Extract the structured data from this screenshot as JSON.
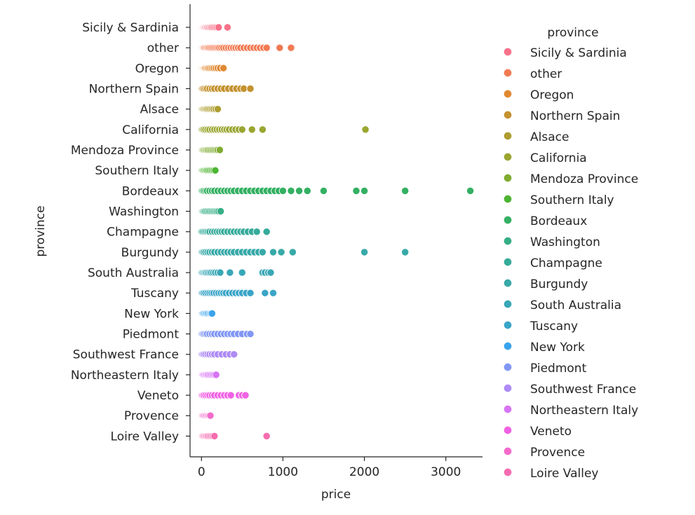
{
  "chart_data": {
    "type": "scatter",
    "xlabel": "price",
    "ylabel": "province",
    "xlim": [
      -140,
      3450
    ],
    "xticks": [
      0,
      1000,
      2000,
      3000
    ],
    "grid": false,
    "legend": {
      "title": "province",
      "placement": "right"
    },
    "series": [
      {
        "name": "Sicily & Sardinia",
        "color": "#f77189",
        "values": [
          4,
          12,
          20,
          28,
          38,
          48,
          60,
          72,
          85,
          100,
          115,
          130,
          150,
          170,
          190,
          210,
          320
        ]
      },
      {
        "name": "other",
        "color": "#f27a52",
        "values": [
          4,
          12,
          20,
          30,
          40,
          55,
          70,
          85,
          100,
          120,
          140,
          160,
          180,
          200,
          220,
          245,
          270,
          300,
          330,
          360,
          390,
          420,
          450,
          480,
          520,
          560,
          600,
          640,
          680,
          720,
          760,
          800,
          960,
          1100
        ]
      },
      {
        "name": "Oregon",
        "color": "#e08932",
        "values": [
          4,
          10,
          18,
          26,
          35,
          45,
          60,
          75,
          90,
          110,
          130,
          150,
          175,
          200,
          230,
          270
        ]
      },
      {
        "name": "Northern Spain",
        "color": "#c4922f",
        "values": [
          5,
          15,
          30,
          50,
          70,
          100,
          130,
          160,
          200,
          240,
          280,
          330,
          380,
          430,
          480,
          520,
          600
        ]
      },
      {
        "name": "Alsace",
        "color": "#ae9d31",
        "values": [
          5,
          15,
          25,
          40,
          55,
          70,
          90,
          110,
          130,
          150,
          175,
          200
        ]
      },
      {
        "name": "California",
        "color": "#9aa630",
        "values": [
          4,
          15,
          30,
          50,
          75,
          100,
          130,
          160,
          190,
          220,
          250,
          280,
          310,
          340,
          380,
          420,
          460,
          500,
          620,
          750,
          2013
        ]
      },
      {
        "name": "Mendoza Province",
        "color": "#7fab31",
        "values": [
          4,
          12,
          22,
          35,
          50,
          65,
          80,
          100,
          120,
          140,
          160,
          180,
          200,
          225
        ]
      },
      {
        "name": "Southern Italy",
        "color": "#4db432",
        "values": [
          5,
          15,
          25,
          40,
          55,
          70,
          90,
          110,
          130,
          150,
          170
        ]
      },
      {
        "name": "Bordeaux",
        "color": "#33b062",
        "values": [
          4,
          15,
          30,
          50,
          70,
          100,
          130,
          160,
          200,
          240,
          280,
          320,
          360,
          400,
          450,
          500,
          550,
          600,
          650,
          700,
          750,
          800,
          850,
          900,
          950,
          1000,
          1100,
          1200,
          1300,
          1500,
          1900,
          2000,
          2500,
          3300
        ]
      },
      {
        "name": "Washington",
        "color": "#35ae85",
        "values": [
          4,
          12,
          22,
          35,
          50,
          70,
          90,
          110,
          130,
          150,
          170,
          190,
          210,
          235
        ]
      },
      {
        "name": "Champagne",
        "color": "#36ab9a",
        "values": [
          5,
          20,
          40,
          60,
          80,
          100,
          130,
          160,
          190,
          220,
          250,
          280,
          320,
          360,
          400,
          440,
          480,
          520,
          570,
          620,
          680,
          800
        ]
      },
      {
        "name": "Burgundy",
        "color": "#38a9a8",
        "values": [
          4,
          15,
          30,
          50,
          75,
          100,
          130,
          160,
          200,
          240,
          280,
          320,
          360,
          400,
          450,
          500,
          550,
          600,
          650,
          700,
          750,
          880,
          980,
          1120,
          2000,
          2500
        ]
      },
      {
        "name": "South Australia",
        "color": "#39a7b6",
        "values": [
          4,
          15,
          30,
          45,
          60,
          80,
          100,
          120,
          145,
          170,
          200,
          230,
          350,
          500,
          750,
          780,
          820,
          850
        ]
      },
      {
        "name": "Tuscany",
        "color": "#3aa5c7",
        "values": [
          4,
          15,
          30,
          50,
          75,
          100,
          125,
          150,
          180,
          210,
          240,
          270,
          300,
          340,
          380,
          420,
          460,
          500,
          550,
          600,
          780,
          880
        ]
      },
      {
        "name": "New York",
        "color": "#3ba3ec",
        "values": [
          4,
          12,
          22,
          35,
          50,
          65,
          80,
          100,
          115,
          130
        ]
      },
      {
        "name": "Piedmont",
        "color": "#8197f4",
        "values": [
          4,
          15,
          30,
          50,
          70,
          100,
          130,
          160,
          200,
          240,
          280,
          320,
          360,
          400,
          450,
          500,
          560,
          600
        ]
      },
      {
        "name": "Southwest France",
        "color": "#ae8af4",
        "values": [
          4,
          15,
          30,
          50,
          75,
          100,
          130,
          160,
          200,
          250,
          300,
          350,
          400
        ]
      },
      {
        "name": "Northeastern Italy",
        "color": "#d774f4",
        "values": [
          4,
          12,
          22,
          35,
          50,
          65,
          80,
          100,
          120,
          140,
          160,
          180
        ]
      },
      {
        "name": "Veneto",
        "color": "#f062e3",
        "values": [
          4,
          15,
          30,
          50,
          75,
          100,
          130,
          160,
          200,
          240,
          280,
          320,
          360,
          460,
          500,
          540
        ]
      },
      {
        "name": "Provence",
        "color": "#f36acb",
        "values": [
          4,
          12,
          22,
          35,
          50,
          65,
          80,
          95,
          110
        ]
      },
      {
        "name": "Loire Valley",
        "color": "#f56cb0",
        "values": [
          4,
          12,
          22,
          35,
          50,
          65,
          80,
          100,
          120,
          140,
          160,
          800
        ]
      }
    ]
  }
}
